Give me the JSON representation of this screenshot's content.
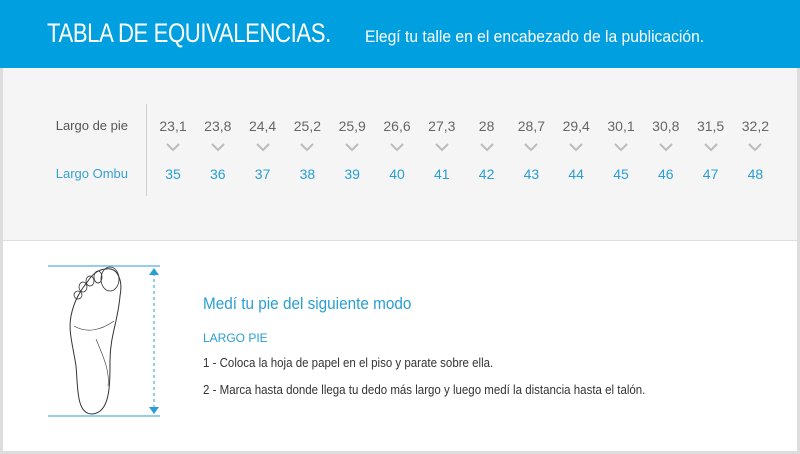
{
  "header": {
    "title": "TABLA DE EQUIVALENCIAS.",
    "subtitle": "Elegí tu talle en el encabezado de la publicación."
  },
  "table": {
    "row1_label": "Largo de pie",
    "row2_label": "Largo Ombu",
    "foot_lengths": [
      "23,1",
      "23,8",
      "24,4",
      "25,2",
      "25,9",
      "26,6",
      "27,3",
      "28",
      "28,7",
      "29,4",
      "30,1",
      "30,8",
      "31,5",
      "32,2"
    ],
    "sizes": [
      "35",
      "36",
      "37",
      "38",
      "39",
      "40",
      "41",
      "42",
      "43",
      "44",
      "45",
      "46",
      "47",
      "48"
    ]
  },
  "instructions": {
    "heading": "Medí tu pie del siguiente modo",
    "subheading": "LARGO PIE",
    "steps": [
      "1 - Coloca la hoja de papel en el piso y parate sobre ella.",
      "2 - Marca hasta donde llega tu dedo más largo y luego medí la distancia hasta el talón."
    ]
  },
  "colors": {
    "accent": "#009fdf",
    "link": "#2a9ed4"
  }
}
